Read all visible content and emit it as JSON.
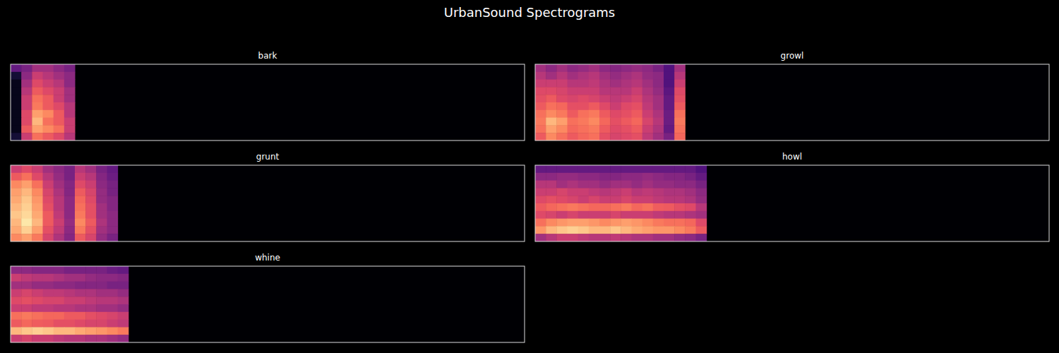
{
  "title": "UrbanSound Spectrograms",
  "chart_data": [
    {
      "type": "heatmap",
      "title": "bark",
      "xlim": [
        0,
        48
      ],
      "ylim": [
        0,
        10
      ],
      "zlim": [
        0,
        1
      ],
      "tick_labels": false,
      "cells": [
        [
          0.3,
          0.35,
          0.45,
          0.45,
          0.4,
          0.35
        ],
        [
          0.1,
          0.4,
          0.55,
          0.5,
          0.45,
          0.4
        ],
        [
          0.05,
          0.45,
          0.6,
          0.55,
          0.5,
          0.4
        ],
        [
          0.05,
          0.5,
          0.65,
          0.6,
          0.55,
          0.45
        ],
        [
          0.05,
          0.55,
          0.7,
          0.65,
          0.55,
          0.45
        ],
        [
          0.05,
          0.55,
          0.72,
          0.65,
          0.6,
          0.5
        ],
        [
          0.05,
          0.6,
          0.8,
          0.75,
          0.65,
          0.5
        ],
        [
          0.05,
          0.6,
          0.85,
          0.7,
          0.65,
          0.55
        ],
        [
          0.05,
          0.65,
          0.8,
          0.75,
          0.7,
          0.55
        ],
        [
          0.1,
          0.55,
          0.7,
          0.65,
          0.6,
          0.5
        ]
      ]
    },
    {
      "type": "heatmap",
      "title": "growl",
      "xlim": [
        0,
        48
      ],
      "ylim": [
        0,
        10
      ],
      "zlim": [
        0,
        1
      ],
      "tick_labels": false,
      "cells": [
        [
          0.45,
          0.4,
          0.45,
          0.4,
          0.42,
          0.45,
          0.4,
          0.38,
          0.4,
          0.42,
          0.4,
          0.35,
          0.25,
          0.45
        ],
        [
          0.5,
          0.45,
          0.5,
          0.45,
          0.48,
          0.5,
          0.45,
          0.42,
          0.45,
          0.48,
          0.42,
          0.4,
          0.25,
          0.5
        ],
        [
          0.55,
          0.55,
          0.55,
          0.5,
          0.5,
          0.52,
          0.48,
          0.45,
          0.48,
          0.5,
          0.45,
          0.4,
          0.25,
          0.55
        ],
        [
          0.6,
          0.6,
          0.58,
          0.55,
          0.55,
          0.55,
          0.5,
          0.5,
          0.5,
          0.55,
          0.48,
          0.42,
          0.28,
          0.6
        ],
        [
          0.62,
          0.65,
          0.6,
          0.58,
          0.6,
          0.58,
          0.55,
          0.52,
          0.55,
          0.58,
          0.5,
          0.45,
          0.3,
          0.62
        ],
        [
          0.65,
          0.7,
          0.68,
          0.62,
          0.62,
          0.65,
          0.6,
          0.55,
          0.6,
          0.62,
          0.52,
          0.45,
          0.3,
          0.65
        ],
        [
          0.7,
          0.75,
          0.72,
          0.65,
          0.7,
          0.72,
          0.65,
          0.6,
          0.62,
          0.65,
          0.55,
          0.48,
          0.32,
          0.7
        ],
        [
          0.72,
          0.85,
          0.8,
          0.7,
          0.72,
          0.75,
          0.68,
          0.62,
          0.65,
          0.68,
          0.58,
          0.5,
          0.32,
          0.72
        ],
        [
          0.7,
          0.8,
          0.75,
          0.68,
          0.7,
          0.72,
          0.65,
          0.6,
          0.62,
          0.65,
          0.55,
          0.48,
          0.3,
          0.7
        ],
        [
          0.65,
          0.75,
          0.7,
          0.65,
          0.68,
          0.7,
          0.62,
          0.58,
          0.6,
          0.62,
          0.52,
          0.45,
          0.35,
          0.68
        ]
      ]
    },
    {
      "type": "heatmap",
      "title": "grunt",
      "xlim": [
        0,
        48
      ],
      "ylim": [
        0,
        10
      ],
      "zlim": [
        0,
        1
      ],
      "tick_labels": false,
      "cells": [
        [
          0.55,
          0.6,
          0.55,
          0.45,
          0.4,
          0.35,
          0.5,
          0.45,
          0.35,
          0.3
        ],
        [
          0.65,
          0.7,
          0.6,
          0.5,
          0.42,
          0.35,
          0.55,
          0.5,
          0.38,
          0.32
        ],
        [
          0.75,
          0.8,
          0.7,
          0.55,
          0.45,
          0.38,
          0.6,
          0.55,
          0.4,
          0.35
        ],
        [
          0.8,
          0.85,
          0.75,
          0.58,
          0.48,
          0.38,
          0.65,
          0.58,
          0.42,
          0.35
        ],
        [
          0.82,
          0.88,
          0.78,
          0.6,
          0.5,
          0.4,
          0.68,
          0.6,
          0.42,
          0.38
        ],
        [
          0.85,
          0.9,
          0.8,
          0.62,
          0.5,
          0.4,
          0.7,
          0.62,
          0.45,
          0.38
        ],
        [
          0.88,
          0.92,
          0.82,
          0.65,
          0.52,
          0.4,
          0.72,
          0.62,
          0.45,
          0.4
        ],
        [
          0.85,
          0.95,
          0.85,
          0.65,
          0.55,
          0.42,
          0.75,
          0.65,
          0.48,
          0.4
        ],
        [
          0.82,
          0.9,
          0.8,
          0.62,
          0.52,
          0.4,
          0.72,
          0.62,
          0.45,
          0.4
        ],
        [
          0.75,
          0.8,
          0.72,
          0.58,
          0.48,
          0.38,
          0.65,
          0.58,
          0.42,
          0.35
        ]
      ]
    },
    {
      "type": "heatmap",
      "title": "howl",
      "xlim": [
        0,
        48
      ],
      "ylim": [
        0,
        10
      ],
      "zlim": [
        0,
        1
      ],
      "tick_labels": false,
      "cells": [
        [
          0.3,
          0.3,
          0.3,
          0.3,
          0.3,
          0.3,
          0.3,
          0.3,
          0.3,
          0.3,
          0.3,
          0.3,
          0.3,
          0.3,
          0.3,
          0.25
        ],
        [
          0.4,
          0.4,
          0.42,
          0.42,
          0.4,
          0.4,
          0.38,
          0.38,
          0.4,
          0.4,
          0.42,
          0.4,
          0.38,
          0.38,
          0.35,
          0.3
        ],
        [
          0.5,
          0.5,
          0.45,
          0.48,
          0.45,
          0.45,
          0.42,
          0.45,
          0.45,
          0.42,
          0.45,
          0.42,
          0.42,
          0.4,
          0.4,
          0.35
        ],
        [
          0.55,
          0.55,
          0.58,
          0.55,
          0.55,
          0.52,
          0.5,
          0.52,
          0.55,
          0.5,
          0.52,
          0.5,
          0.48,
          0.48,
          0.45,
          0.4
        ],
        [
          0.6,
          0.62,
          0.6,
          0.58,
          0.55,
          0.58,
          0.55,
          0.55,
          0.58,
          0.55,
          0.55,
          0.52,
          0.5,
          0.5,
          0.48,
          0.42
        ],
        [
          0.65,
          0.68,
          0.7,
          0.72,
          0.7,
          0.68,
          0.68,
          0.7,
          0.72,
          0.68,
          0.7,
          0.66,
          0.65,
          0.62,
          0.6,
          0.5
        ],
        [
          0.6,
          0.58,
          0.55,
          0.58,
          0.55,
          0.55,
          0.55,
          0.58,
          0.55,
          0.55,
          0.55,
          0.52,
          0.5,
          0.5,
          0.48,
          0.45
        ],
        [
          0.7,
          0.75,
          0.78,
          0.8,
          0.8,
          0.78,
          0.75,
          0.78,
          0.8,
          0.78,
          0.75,
          0.72,
          0.7,
          0.7,
          0.68,
          0.6
        ],
        [
          0.78,
          0.85,
          0.88,
          0.9,
          0.88,
          0.85,
          0.85,
          0.88,
          0.85,
          0.82,
          0.8,
          0.78,
          0.78,
          0.75,
          0.72,
          0.65
        ],
        [
          0.45,
          0.5,
          0.55,
          0.55,
          0.52,
          0.5,
          0.5,
          0.52,
          0.5,
          0.48,
          0.48,
          0.45,
          0.45,
          0.42,
          0.4,
          0.35
        ]
      ]
    },
    {
      "type": "heatmap",
      "title": "whine",
      "xlim": [
        0,
        48
      ],
      "ylim": [
        0,
        10
      ],
      "zlim": [
        0,
        1
      ],
      "tick_labels": false,
      "cells": [
        [
          0.4,
          0.4,
          0.38,
          0.38,
          0.38,
          0.35,
          0.35,
          0.35,
          0.35,
          0.32,
          0.3
        ],
        [
          0.55,
          0.52,
          0.5,
          0.5,
          0.48,
          0.45,
          0.45,
          0.42,
          0.4,
          0.4,
          0.38
        ],
        [
          0.45,
          0.45,
          0.42,
          0.42,
          0.4,
          0.4,
          0.38,
          0.38,
          0.38,
          0.35,
          0.35
        ],
        [
          0.55,
          0.58,
          0.55,
          0.52,
          0.52,
          0.5,
          0.48,
          0.48,
          0.45,
          0.45,
          0.42
        ],
        [
          0.6,
          0.62,
          0.6,
          0.58,
          0.58,
          0.55,
          0.55,
          0.52,
          0.5,
          0.5,
          0.48
        ],
        [
          0.55,
          0.55,
          0.52,
          0.52,
          0.5,
          0.5,
          0.48,
          0.48,
          0.45,
          0.45,
          0.42
        ],
        [
          0.7,
          0.72,
          0.7,
          0.68,
          0.68,
          0.65,
          0.65,
          0.62,
          0.6,
          0.58,
          0.55
        ],
        [
          0.65,
          0.68,
          0.66,
          0.65,
          0.62,
          0.62,
          0.6,
          0.58,
          0.58,
          0.55,
          0.52
        ],
        [
          0.85,
          0.88,
          0.9,
          0.88,
          0.85,
          0.85,
          0.82,
          0.8,
          0.78,
          0.75,
          0.72
        ],
        [
          0.55,
          0.58,
          0.55,
          0.55,
          0.52,
          0.5,
          0.5,
          0.48,
          0.48,
          0.45,
          0.42
        ]
      ]
    }
  ]
}
